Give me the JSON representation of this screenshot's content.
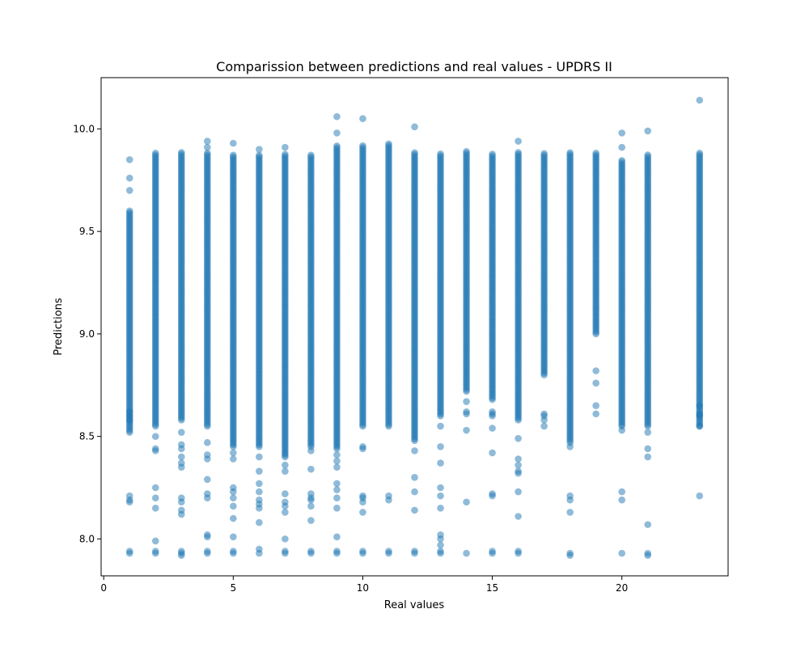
{
  "chart_data": {
    "type": "scatter",
    "title": "Comparission between predictions and real values - UPDRS II",
    "xlabel": "Real values",
    "ylabel": "Predictions",
    "xlim": [
      -0.1,
      24.1
    ],
    "ylim": [
      7.82,
      10.25
    ],
    "xticks": [
      0,
      5,
      10,
      15,
      20
    ],
    "xtick_labels": [
      "0",
      "5",
      "10",
      "15",
      "20"
    ],
    "yticks": [
      8.0,
      8.5,
      9.0,
      9.5,
      10.0
    ],
    "ytick_labels": [
      "8.0",
      "8.5",
      "9.0",
      "9.5",
      "10.0"
    ],
    "grid": false,
    "marker_color": "#1f77b4",
    "marker_alpha": 0.5,
    "series": [
      {
        "x_values": [
          1,
          2,
          3,
          4,
          5,
          6,
          7,
          8,
          9,
          10,
          11,
          12,
          13,
          14,
          15,
          16,
          17,
          18,
          19,
          20,
          21,
          23
        ],
        "point_clusters": [
          {
            "x": 1,
            "dense_range": [
              8.52,
              9.6
            ],
            "points": [
              9.85,
              9.76,
              9.7,
              8.62,
              8.6,
              8.58,
              8.21,
              8.19,
              8.18,
              7.94,
              7.93
            ]
          },
          {
            "x": 2,
            "dense_range": [
              8.55,
              9.89
            ],
            "points": [
              8.5,
              8.44,
              8.43,
              8.25,
              8.2,
              8.15,
              7.99,
              7.94,
              7.93
            ]
          },
          {
            "x": 3,
            "dense_range": [
              8.58,
              9.89
            ],
            "points": [
              8.52,
              8.46,
              8.44,
              8.4,
              8.37,
              8.35,
              8.2,
              8.18,
              8.14,
              8.12,
              7.94,
              7.93,
              7.92
            ]
          },
          {
            "x": 4,
            "dense_range": [
              8.55,
              9.89
            ],
            "points": [
              9.94,
              9.91,
              8.47,
              8.41,
              8.39,
              8.29,
              8.22,
              8.2,
              8.02,
              8.01,
              7.94,
              7.93
            ]
          },
          {
            "x": 5,
            "dense_range": [
              8.45,
              9.88
            ],
            "points": [
              9.93,
              8.42,
              8.39,
              8.25,
              8.23,
              8.2,
              8.16,
              8.1,
              8.01,
              7.94,
              7.93
            ]
          },
          {
            "x": 6,
            "dense_range": [
              8.45,
              9.88
            ],
            "points": [
              9.9,
              8.4,
              8.33,
              8.27,
              8.23,
              8.19,
              8.17,
              8.15,
              8.08,
              7.95,
              7.93
            ]
          },
          {
            "x": 7,
            "dense_range": [
              8.4,
              9.88
            ],
            "points": [
              9.91,
              8.36,
              8.33,
              8.22,
              8.18,
              8.16,
              8.13,
              8.0,
              7.94,
              7.93
            ]
          },
          {
            "x": 8,
            "dense_range": [
              8.45,
              9.88
            ],
            "points": [
              8.43,
              8.34,
              8.22,
              8.2,
              8.19,
              8.16,
              8.09,
              7.94,
              7.93
            ]
          },
          {
            "x": 9,
            "dense_range": [
              8.45,
              9.92
            ],
            "points": [
              10.06,
              9.98,
              8.44,
              8.41,
              8.38,
              8.35,
              8.27,
              8.24,
              8.2,
              8.15,
              8.01,
              7.94,
              7.93
            ]
          },
          {
            "x": 10,
            "dense_range": [
              8.55,
              9.92
            ],
            "points": [
              10.05,
              8.45,
              8.44,
              8.21,
              8.2,
              8.18,
              8.13,
              7.94,
              7.93
            ]
          },
          {
            "x": 11,
            "dense_range": [
              8.55,
              9.93
            ],
            "points": [
              8.21,
              8.19,
              7.94,
              7.93
            ]
          },
          {
            "x": 12,
            "dense_range": [
              8.48,
              9.89
            ],
            "points": [
              10.01,
              8.43,
              8.3,
              8.23,
              8.14,
              7.94,
              7.93
            ]
          },
          {
            "x": 13,
            "dense_range": [
              8.6,
              9.88
            ],
            "points": [
              8.55,
              8.45,
              8.37,
              8.25,
              8.21,
              8.15,
              8.02,
              8.0,
              7.97,
              7.94,
              7.93
            ]
          },
          {
            "x": 14,
            "dense_range": [
              8.72,
              9.89
            ],
            "points": [
              8.67,
              8.62,
              8.61,
              8.53,
              8.18,
              7.93
            ]
          },
          {
            "x": 15,
            "dense_range": [
              8.68,
              9.88
            ],
            "points": [
              8.62,
              8.61,
              8.6,
              8.54,
              8.42,
              8.22,
              8.21,
              7.94,
              7.93
            ]
          },
          {
            "x": 16,
            "dense_range": [
              8.58,
              9.89
            ],
            "points": [
              9.94,
              8.49,
              8.39,
              8.36,
              8.33,
              8.32,
              8.23,
              8.11,
              7.94,
              7.93
            ]
          },
          {
            "x": 17,
            "dense_range": [
              8.8,
              9.88
            ],
            "points": [
              8.61,
              8.6,
              8.58,
              8.55
            ]
          },
          {
            "x": 18,
            "dense_range": [
              8.48,
              9.89
            ],
            "points": [
              8.47,
              8.45,
              8.21,
              8.19,
              8.13,
              7.93,
              7.92
            ]
          },
          {
            "x": 19,
            "dense_range": [
              9.0,
              9.89
            ],
            "points": [
              8.82,
              8.76,
              8.65,
              8.61
            ]
          },
          {
            "x": 20,
            "dense_range": [
              8.55,
              9.85
            ],
            "points": [
              9.98,
              9.91,
              8.53,
              8.23,
              8.19,
              7.93
            ]
          },
          {
            "x": 21,
            "dense_range": [
              8.55,
              9.88
            ],
            "points": [
              9.99,
              8.52,
              8.44,
              8.4,
              8.07,
              7.93,
              7.92
            ]
          },
          {
            "x": 23,
            "dense_range": [
              8.55,
              9.89
            ],
            "points": [
              10.14,
              8.65,
              8.61,
              8.6,
              8.55,
              8.21
            ]
          }
        ]
      }
    ]
  }
}
